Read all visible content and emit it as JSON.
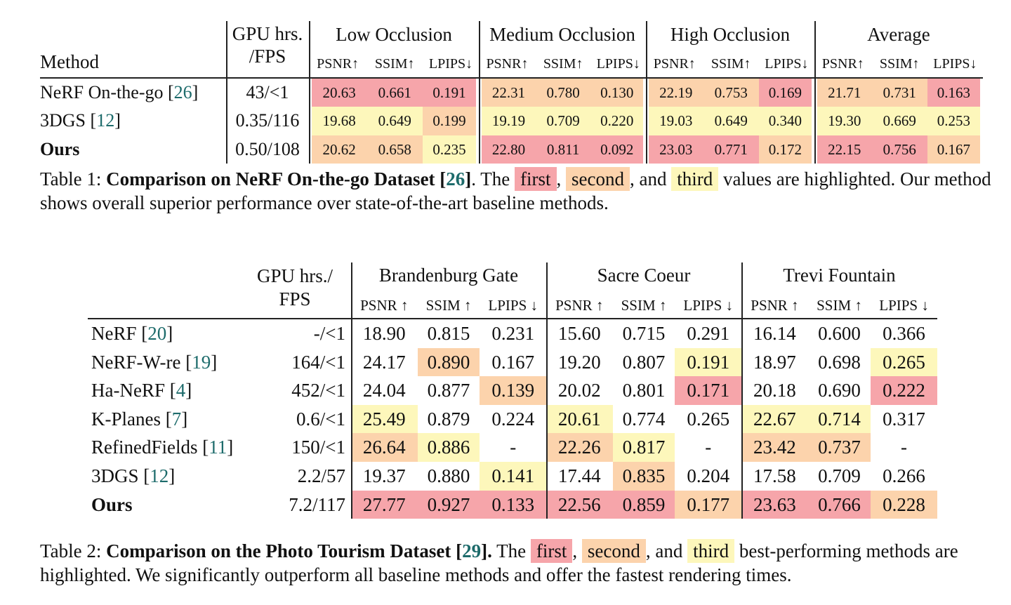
{
  "table1": {
    "header": {
      "method": "Method",
      "gpu": [
        "GPU hrs.",
        "/FPS"
      ],
      "groups": [
        {
          "name": "Low Occlusion",
          "metrics": [
            "PSNR↑",
            "SSIM↑",
            "LPIPS↓"
          ]
        },
        {
          "name": "Medium Occlusion",
          "metrics": [
            "PSNR↑",
            "SSIM↑",
            "LPIPS↓"
          ]
        },
        {
          "name": "High Occlusion",
          "metrics": [
            "PSNR↑",
            "SSIM↑",
            "LPIPS↓"
          ]
        },
        {
          "name": "Average",
          "metrics": [
            "PSNR↑",
            "SSIM↑",
            "LPIPS↓"
          ]
        }
      ]
    },
    "rows": [
      {
        "method": "NeRF On-the-go",
        "ref": "[26]",
        "gpu": "43/<1",
        "values": [
          "20.63",
          "0.661",
          "0.191",
          "22.31",
          "0.780",
          "0.130",
          "22.19",
          "0.753",
          "0.169",
          "21.71",
          "0.731",
          "0.163"
        ],
        "ranks": [
          1,
          1,
          1,
          2,
          2,
          2,
          2,
          2,
          1,
          2,
          2,
          1
        ]
      },
      {
        "method": "3DGS",
        "ref": "[12]",
        "gpu": "0.35/116",
        "values": [
          "19.68",
          "0.649",
          "0.199",
          "19.19",
          "0.709",
          "0.220",
          "19.03",
          "0.649",
          "0.340",
          "19.30",
          "0.669",
          "0.253"
        ],
        "ranks": [
          3,
          3,
          2,
          3,
          3,
          3,
          3,
          3,
          3,
          3,
          3,
          3
        ]
      },
      {
        "method": "Ours",
        "bold": true,
        "gpu": "0.50/108",
        "values": [
          "20.62",
          "0.658",
          "0.235",
          "22.80",
          "0.811",
          "0.092",
          "23.03",
          "0.771",
          "0.172",
          "22.15",
          "0.756",
          "0.167"
        ],
        "ranks": [
          2,
          2,
          3,
          1,
          1,
          1,
          1,
          1,
          2,
          1,
          1,
          2
        ]
      }
    ],
    "caption": [
      {
        "text": "Table 1: "
      },
      {
        "text": "Comparison on NeRF On-the-go Dataset ",
        "style": "bold"
      },
      {
        "text": "[26]",
        "style": "ref"
      },
      {
        "text": ". The "
      },
      {
        "text": "first",
        "style": "first"
      },
      {
        "text": ", "
      },
      {
        "text": "second",
        "style": "second"
      },
      {
        "text": ", and "
      },
      {
        "text": "third",
        "style": "third"
      },
      {
        "text": " values are highlighted. Our method shows overall superior performance over state-of-the-art baseline methods."
      }
    ]
  },
  "table2": {
    "header": {
      "gpu": [
        "GPU hrs./",
        "FPS"
      ],
      "groups": [
        {
          "name": "Brandenburg Gate",
          "metrics": [
            "PSNR ↑",
            "SSIM ↑",
            "LPIPS ↓"
          ]
        },
        {
          "name": "Sacre Coeur",
          "metrics": [
            "PSNR ↑",
            "SSIM ↑",
            "LPIPS ↓"
          ]
        },
        {
          "name": "Trevi Fountain",
          "metrics": [
            "PSNR ↑",
            "SSIM ↑",
            "LPIPS ↓"
          ]
        }
      ]
    },
    "rows": [
      {
        "method": "NeRF",
        "ref": "[20]",
        "gpu": "-/<1",
        "values": [
          "18.90",
          "0.815",
          "0.231",
          "15.60",
          "0.715",
          "0.291",
          "16.14",
          "0.600",
          "0.366"
        ],
        "ranks": [
          0,
          0,
          0,
          0,
          0,
          0,
          0,
          0,
          0
        ]
      },
      {
        "method": "NeRF-W-re",
        "ref": "[19]",
        "gpu": "164/<1",
        "values": [
          "24.17",
          "0.890",
          "0.167",
          "19.20",
          "0.807",
          "0.191",
          "18.97",
          "0.698",
          "0.265"
        ],
        "ranks": [
          0,
          2,
          0,
          0,
          0,
          3,
          0,
          0,
          3
        ]
      },
      {
        "method": "Ha-NeRF",
        "ref": "[4]",
        "gpu": "452/<1",
        "values": [
          "24.04",
          "0.877",
          "0.139",
          "20.02",
          "0.801",
          "0.171",
          "20.18",
          "0.690",
          "0.222"
        ],
        "ranks": [
          0,
          0,
          2,
          0,
          0,
          1,
          0,
          0,
          1
        ]
      },
      {
        "method": "K-Planes",
        "ref": "[7]",
        "gpu": "0.6/<1",
        "values": [
          "25.49",
          "0.879",
          "0.224",
          "20.61",
          "0.774",
          "0.265",
          "22.67",
          "0.714",
          "0.317"
        ],
        "ranks": [
          3,
          0,
          0,
          3,
          0,
          0,
          3,
          3,
          0
        ]
      },
      {
        "method": "RefinedFields",
        "ref": "[11]",
        "gpu": "150/<1",
        "values": [
          "26.64",
          "0.886",
          "-",
          "22.26",
          "0.817",
          "-",
          "23.42",
          "0.737",
          "-"
        ],
        "ranks": [
          2,
          3,
          0,
          2,
          3,
          0,
          2,
          2,
          0
        ]
      },
      {
        "method": "3DGS",
        "ref": "[12]",
        "gpu": "2.2/57",
        "values": [
          "19.37",
          "0.880",
          "0.141",
          "17.44",
          "0.835",
          "0.204",
          "17.58",
          "0.709",
          "0.266"
        ],
        "ranks": [
          0,
          0,
          3,
          0,
          2,
          0,
          0,
          0,
          0
        ]
      },
      {
        "method": "Ours",
        "bold": true,
        "gpu": "7.2/117",
        "values": [
          "27.77",
          "0.927",
          "0.133",
          "22.56",
          "0.859",
          "0.177",
          "23.63",
          "0.766",
          "0.228"
        ],
        "ranks": [
          1,
          1,
          1,
          1,
          1,
          2,
          1,
          1,
          2
        ]
      }
    ],
    "caption": [
      {
        "text": "Table 2: "
      },
      {
        "text": "Comparison on the Photo Tourism Dataset ",
        "style": "bold"
      },
      {
        "text": "[29]",
        "style": "ref"
      },
      {
        "text": ".",
        "style": "bold"
      },
      {
        "text": " The "
      },
      {
        "text": "first",
        "style": "first"
      },
      {
        "text": ", "
      },
      {
        "text": "second",
        "style": "second"
      },
      {
        "text": ", and "
      },
      {
        "text": "third",
        "style": "third"
      },
      {
        "text": " best-performing methods are highlighted. We significantly outperform all baseline methods and offer the fastest rendering times."
      }
    ]
  },
  "highlight_colors": {
    "1": "#f6a5aa",
    "2": "#fcd3ac",
    "3": "#fdf7bb"
  }
}
